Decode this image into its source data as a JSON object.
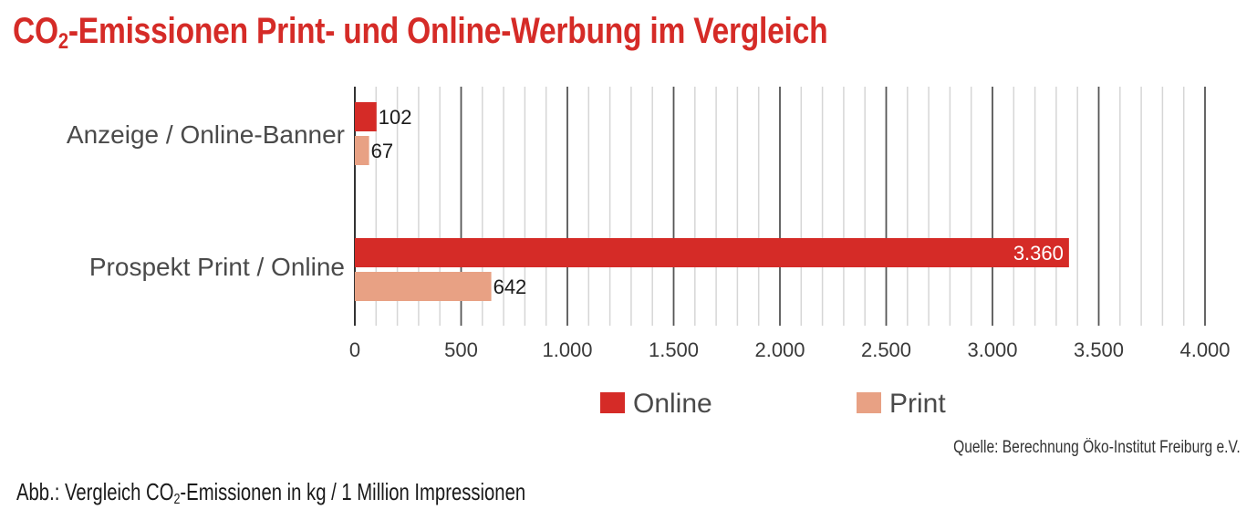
{
  "header": {
    "title_pre": "CO",
    "title_sub": "2",
    "title_post": "-Emissionen Print- und Online-Werbung im Vergleich"
  },
  "chart_data": {
    "type": "bar",
    "orientation": "horizontal",
    "categories": [
      "Anzeige / Online-Banner",
      "Prospekt Print / Online"
    ],
    "series": [
      {
        "name": "Online",
        "values": [
          102,
          3360
        ],
        "value_labels": [
          "102",
          "3.360"
        ],
        "color": "#d52b27"
      },
      {
        "name": "Print",
        "values": [
          67,
          642
        ],
        "value_labels": [
          "67",
          "642"
        ],
        "color": "#e8a184"
      }
    ],
    "xlim": [
      0,
      4000
    ],
    "x_ticks": [
      0,
      500,
      1000,
      1500,
      2000,
      2500,
      3000,
      3500,
      4000
    ],
    "x_tick_labels": [
      "0",
      "500",
      "1.000",
      "1.500",
      "2.000",
      "2.500",
      "3.000",
      "3.500",
      "4.000"
    ],
    "minor_grid_step": 100,
    "grid": true,
    "legend_position": "bottom"
  },
  "source": "Quelle: Berechnung Öko-Institut Freiburg e.V.",
  "caption": {
    "pre": "Abb.: Vergleich CO",
    "sub": "2",
    "post": "-Emissionen in kg / 1 Million Impressionen"
  }
}
